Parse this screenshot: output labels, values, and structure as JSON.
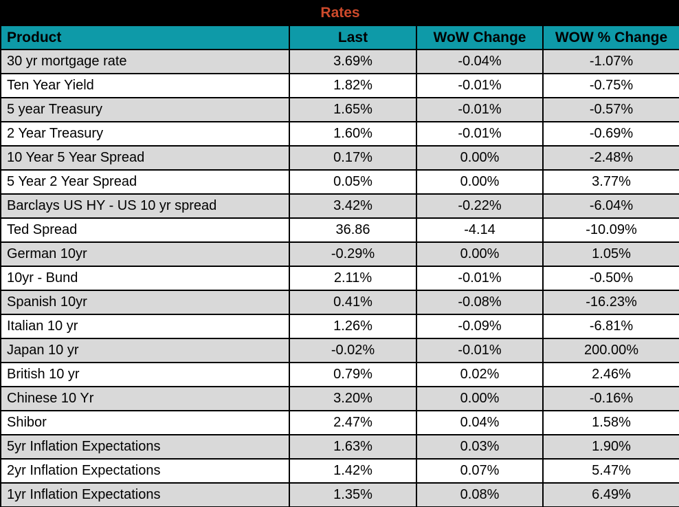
{
  "colors": {
    "title_bg": "#000000",
    "title_text": "#CE4A2B",
    "header_bg": "#0E9AA8",
    "row_alt_bg": "#D9D9D9",
    "row_bg": "#FFFFFF",
    "border": "#000000",
    "text": "#000000"
  },
  "chart_data": {
    "type": "table",
    "title": "Rates",
    "columns": [
      {
        "key": "product",
        "label": "Product",
        "align": "left"
      },
      {
        "key": "last",
        "label": "Last",
        "align": "center"
      },
      {
        "key": "wow_change",
        "label": "WoW Change",
        "align": "center"
      },
      {
        "key": "wow_pct_change",
        "label": "WOW % Change",
        "align": "center"
      }
    ],
    "rows": [
      [
        "30 yr mortgage rate",
        "3.69%",
        "-0.04%",
        "-1.07%"
      ],
      [
        "Ten Year Yield",
        "1.82%",
        "-0.01%",
        "-0.75%"
      ],
      [
        "5 year Treasury",
        "1.65%",
        "-0.01%",
        "-0.57%"
      ],
      [
        "2 Year Treasury",
        "1.60%",
        "-0.01%",
        "-0.69%"
      ],
      [
        "10 Year 5 Year Spread",
        "0.17%",
        "0.00%",
        "-2.48%"
      ],
      [
        "5 Year 2 Year Spread",
        "0.05%",
        "0.00%",
        "3.77%"
      ],
      [
        "Barclays US HY - US 10 yr spread",
        "3.42%",
        "-0.22%",
        "-6.04%"
      ],
      [
        "Ted Spread",
        "36.86",
        "-4.14",
        "-10.09%"
      ],
      [
        "German 10yr",
        "-0.29%",
        "0.00%",
        "1.05%"
      ],
      [
        "10yr - Bund",
        "2.11%",
        "-0.01%",
        "-0.50%"
      ],
      [
        "Spanish 10yr",
        "0.41%",
        "-0.08%",
        "-16.23%"
      ],
      [
        "Italian 10 yr",
        "1.26%",
        "-0.09%",
        "-6.81%"
      ],
      [
        "Japan 10 yr",
        "-0.02%",
        "-0.01%",
        "200.00%"
      ],
      [
        "British 10 yr",
        "0.79%",
        "0.02%",
        "2.46%"
      ],
      [
        "Chinese 10 Yr",
        "3.20%",
        "0.00%",
        "-0.16%"
      ],
      [
        "Shibor",
        "2.47%",
        "0.04%",
        "1.58%"
      ],
      [
        "5yr Inflation Expectations",
        "1.63%",
        "0.03%",
        "1.90%"
      ],
      [
        "2yr Inflation Expectations",
        "1.42%",
        "0.07%",
        "5.47%"
      ],
      [
        "1yr Inflation Expectations",
        "1.35%",
        "0.08%",
        "6.49%"
      ]
    ],
    "layout_hints": {
      "alternating_row_shading": "first data row shaded gray, then alternating",
      "grid": true
    }
  }
}
